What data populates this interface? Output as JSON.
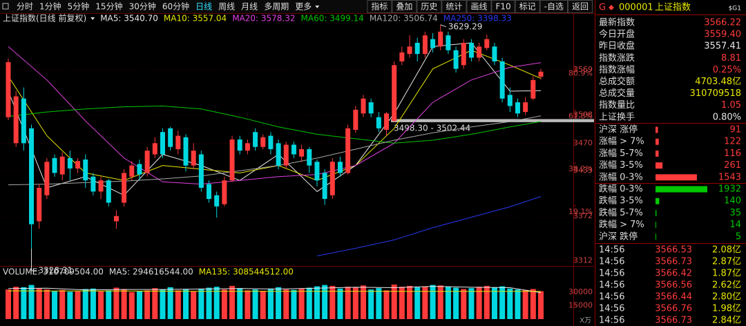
{
  "toolbar": {
    "periods": [
      "分时",
      "1分钟",
      "5分钟",
      "15分钟",
      "30分钟",
      "60分钟",
      "日线",
      "周线",
      "月线",
      "多周期",
      "更多"
    ],
    "active_period": "日线",
    "buttons": [
      "指标",
      "叠加",
      "历史",
      "统计",
      "画线",
      "F10",
      "标记",
      "-自选",
      "返回"
    ]
  },
  "chart_data": {
    "type": "candlestick",
    "title": "上证指数(日线 前复权)",
    "up_color": "#ff3b3b",
    "down_color": "#00d8e0",
    "open": [
      3505,
      3470,
      3530,
      3490,
      3365,
      3400,
      3450,
      3428,
      3450,
      3436,
      3448,
      3425,
      3405,
      3420,
      3365,
      3390,
      3425,
      3442,
      3430,
      3455,
      3485,
      3490,
      3462,
      3478,
      3440,
      3455,
      3415,
      3400,
      3388,
      3420,
      3475,
      3460,
      3485,
      3465,
      3480,
      3470,
      3440,
      3468,
      3452,
      3462,
      3445,
      3430,
      3400,
      3445,
      3430,
      3488,
      3510,
      3525,
      3505,
      3488,
      3500,
      3580,
      3590,
      3605,
      3590,
      3610,
      3600,
      3615,
      3595,
      3575,
      3605,
      3585,
      3598,
      3600,
      3580,
      3535,
      3525,
      3512,
      3530,
      3559.4
    ],
    "high": [
      3584,
      3540,
      3545,
      3495,
      3415,
      3450,
      3455,
      3458,
      3460,
      3450,
      3455,
      3430,
      3425,
      3422,
      3380,
      3435,
      3446,
      3448,
      3465,
      3478,
      3490,
      3492,
      3487,
      3482,
      3470,
      3460,
      3420,
      3405,
      3425,
      3480,
      3480,
      3475,
      3490,
      3482,
      3485,
      3475,
      3472,
      3472,
      3468,
      3465,
      3448,
      3435,
      3450,
      3452,
      3495,
      3520,
      3535,
      3530,
      3512,
      3512,
      3580,
      3600,
      3615,
      3612,
      3620,
      3618,
      3629.29,
      3620,
      3600,
      3610,
      3610,
      3605,
      3616,
      3605,
      3585,
      3545,
      3530,
      3532,
      3560,
      3570
    ],
    "low": [
      3501,
      3465,
      3460,
      3328.31,
      3355,
      3395,
      3425,
      3420,
      3420,
      3430,
      3410,
      3400,
      3395,
      3385,
      3355,
      3385,
      3420,
      3420,
      3425,
      3450,
      3450,
      3460,
      3455,
      3432,
      3435,
      3405,
      3390,
      3370,
      3385,
      3418,
      3455,
      3455,
      3460,
      3462,
      3455,
      3435,
      3436,
      3450,
      3445,
      3430,
      3412,
      3387,
      3395,
      3425,
      3428,
      3484,
      3505,
      3505,
      3485,
      3480,
      3498,
      3575,
      3585,
      3580,
      3585,
      3592,
      3595,
      3590,
      3565,
      3570,
      3580,
      3580,
      3595,
      3575,
      3525,
      3512,
      3505,
      3508,
      3528,
      3556
    ],
    "close": [
      3579,
      3533,
      3470,
      3361,
      3410,
      3445,
      3430,
      3452,
      3436,
      3446,
      3420,
      3405,
      3420,
      3390,
      3372,
      3430,
      3440,
      3428,
      3460,
      3470,
      3455,
      3465,
      3480,
      3440,
      3460,
      3410,
      3395,
      3385,
      3420,
      3475,
      3460,
      3470,
      3465,
      3478,
      3462,
      3440,
      3468,
      3455,
      3462,
      3440,
      3420,
      3395,
      3445,
      3430,
      3490,
      3515,
      3530,
      3510,
      3490,
      3510,
      3575,
      3592,
      3600,
      3590,
      3615,
      3598,
      3620,
      3595,
      3570,
      3605,
      3585,
      3600,
      3610,
      3580,
      3530,
      3520,
      3510,
      3525,
      3555,
      3566.22
    ],
    "ylim": [
      3305,
      3644
    ],
    "yticks": [
      3569,
      3508,
      3470,
      3433,
      3372,
      3312
    ],
    "grid": true,
    "fib_levels": [
      {
        "value": 80.9,
        "label": "80.9%"
      },
      {
        "value": 61.8,
        "label": "61.8%"
      },
      {
        "value": 38.2,
        "label": "38.2%"
      },
      {
        "value": 19.1,
        "label": "19.1%"
      }
    ],
    "high_label": "3629.29",
    "low_label": "3328.31",
    "band": {
      "low": 3498.3,
      "high": 3502.44,
      "label": "3498.30 - 3502.44"
    },
    "ma_x": [
      0,
      5,
      10,
      15,
      20,
      25,
      30,
      35,
      40,
      45,
      50,
      55,
      60,
      65,
      69
    ],
    "series": [
      {
        "legend": "MA5: 3540.70",
        "color": "#e8e8e8",
        "values": [
          3540,
          3410,
          3425,
          3400,
          3455,
          3440,
          3420,
          3455,
          3405,
          3440,
          3510,
          3600,
          3605,
          3540,
          3540.7
        ]
      },
      {
        "legend": "MA10: 3557.04",
        "color": "#e8e800",
        "values": [
          3560,
          3480,
          3430,
          3420,
          3440,
          3435,
          3430,
          3440,
          3420,
          3440,
          3490,
          3570,
          3595,
          3575,
          3557.04
        ]
      },
      {
        "legend": "MA20: 3578.32",
        "color": "#e040e0",
        "values": [
          3600,
          3555,
          3500,
          3450,
          3418,
          3415,
          3420,
          3425,
          3428,
          3440,
          3470,
          3525,
          3555,
          3572,
          3578.32
        ]
      },
      {
        "legend": "MA60: 3499.14",
        "color": "#00c800",
        "values": [
          3506,
          3512,
          3516,
          3519,
          3520,
          3516,
          3505,
          3492,
          3482,
          3476,
          3470,
          3474,
          3482,
          3492,
          3499.14
        ]
      },
      {
        "legend": "MA120: 3506.74",
        "color": "#a8a8a8",
        "values": [
          3414,
          3415,
          3417,
          3419,
          3422,
          3426,
          3433,
          3440,
          3450,
          3462,
          3474,
          3484,
          3492,
          3499,
          3506.74
        ]
      },
      {
        "legend": "MA250: 3398.33",
        "color": "#2838f0",
        "values": [
          null,
          null,
          null,
          null,
          null,
          null,
          null,
          null,
          3318.5,
          3328.7,
          3340,
          3356.5,
          3370.5,
          3384.5,
          3398.33
        ]
      }
    ],
    "volume": {
      "legend": [
        "VOLUME: 310709504.00",
        "MA5: 294616544.00",
        "MA135: 308544512.00"
      ],
      "unit": "X万",
      "ylim": [
        0,
        47700
      ],
      "yticks": [
        30000,
        15000
      ],
      "values": [
        33000,
        36000,
        35500,
        38000,
        34000,
        33000,
        31000,
        32500,
        30500,
        31000,
        33500,
        34000,
        31000,
        32000,
        35000,
        33500,
        30000,
        31500,
        32000,
        34500,
        33000,
        35500,
        32000,
        33500,
        31000,
        34000,
        35000,
        36000,
        33000,
        37000,
        34500,
        32000,
        33000,
        31500,
        34000,
        35500,
        33000,
        32500,
        34000,
        35000,
        36500,
        38000,
        37000,
        34000,
        36000,
        35000,
        37500,
        33000,
        34500,
        32000,
        38500,
        36000,
        37000,
        35500,
        36500,
        38000,
        37500,
        36000,
        35000,
        33500,
        34500,
        36000,
        37000,
        35500,
        36500,
        34000,
        33000,
        32500,
        33500,
        31070.95
      ],
      "lines": [
        {
          "color": "#e8e8e8",
          "values": [
            34000,
            34500,
            32500,
            33000,
            33000,
            33500,
            34000,
            33500,
            34500,
            35500,
            35000,
            36500,
            35500,
            35000,
            29461.65
          ]
        },
        {
          "color": "#e8e800",
          "values": [
            31500,
            31400,
            31300,
            31200,
            31100,
            31000,
            31000,
            30900,
            30900,
            30900,
            30850,
            30850,
            30850,
            30850,
            30854.45
          ]
        }
      ]
    }
  },
  "quote": {
    "flag": "G",
    "code": "000001",
    "name": "上证指数",
    "tag": "$G1",
    "rows": [
      {
        "label": "最新指数",
        "value": "3566.22",
        "color": "#ff3b3b"
      },
      {
        "label": "今日开盘",
        "value": "3559.40",
        "color": "#ff3b3b"
      },
      {
        "label": "昨日收盘",
        "value": "3557.41",
        "color": "#e8e8e8"
      },
      {
        "label": "指数涨跌",
        "value": "8.81",
        "color": "#ff3b3b"
      },
      {
        "label": "指数涨幅",
        "value": "0.25%",
        "color": "#ff3b3b"
      },
      {
        "label": "总成交额",
        "value": "4703.48亿",
        "color": "#e8e800"
      },
      {
        "label": "总成交量",
        "value": "310709518",
        "color": "#e8e800"
      },
      {
        "label": "指数量比",
        "value": "1.05",
        "color": "#ff3b3b"
      },
      {
        "label": "上证换手",
        "value": "0.80%",
        "color": "#e8e8e8"
      }
    ],
    "rises": [
      {
        "label": "沪深  涨停",
        "count": 91
      },
      {
        "label": "涨幅 > 7%",
        "count": 122
      },
      {
        "label": "涨幅 5-7%",
        "count": 116
      },
      {
        "label": "涨幅 3-5%",
        "count": 261
      },
      {
        "label": "涨幅 0-3%",
        "count": 1543
      }
    ],
    "falls": [
      {
        "label": "跌幅 0-3%",
        "count": 1932
      },
      {
        "label": "跌幅 3-5%",
        "count": 140
      },
      {
        "label": "跌幅 5-7%",
        "count": 35
      },
      {
        "label": "跌幅 > 7%",
        "count": 14
      },
      {
        "label": "沪深  跌停",
        "count": 5
      }
    ],
    "rise_color": "#ff3b3b",
    "fall_color": "#00c800",
    "trades": [
      [
        "14:56",
        "3566.53",
        "2.08亿"
      ],
      [
        "14:56",
        "3566.73",
        "2.87亿"
      ],
      [
        "14:56",
        "3566.42",
        "1.87亿"
      ],
      [
        "14:56",
        "3566.56",
        "2.62亿"
      ],
      [
        "14:56",
        "3566.44",
        "2.80亿"
      ],
      [
        "14:56",
        "3566.76",
        "1.98亿"
      ],
      [
        "14:56",
        "3566.73",
        "2.84亿"
      ]
    ]
  }
}
